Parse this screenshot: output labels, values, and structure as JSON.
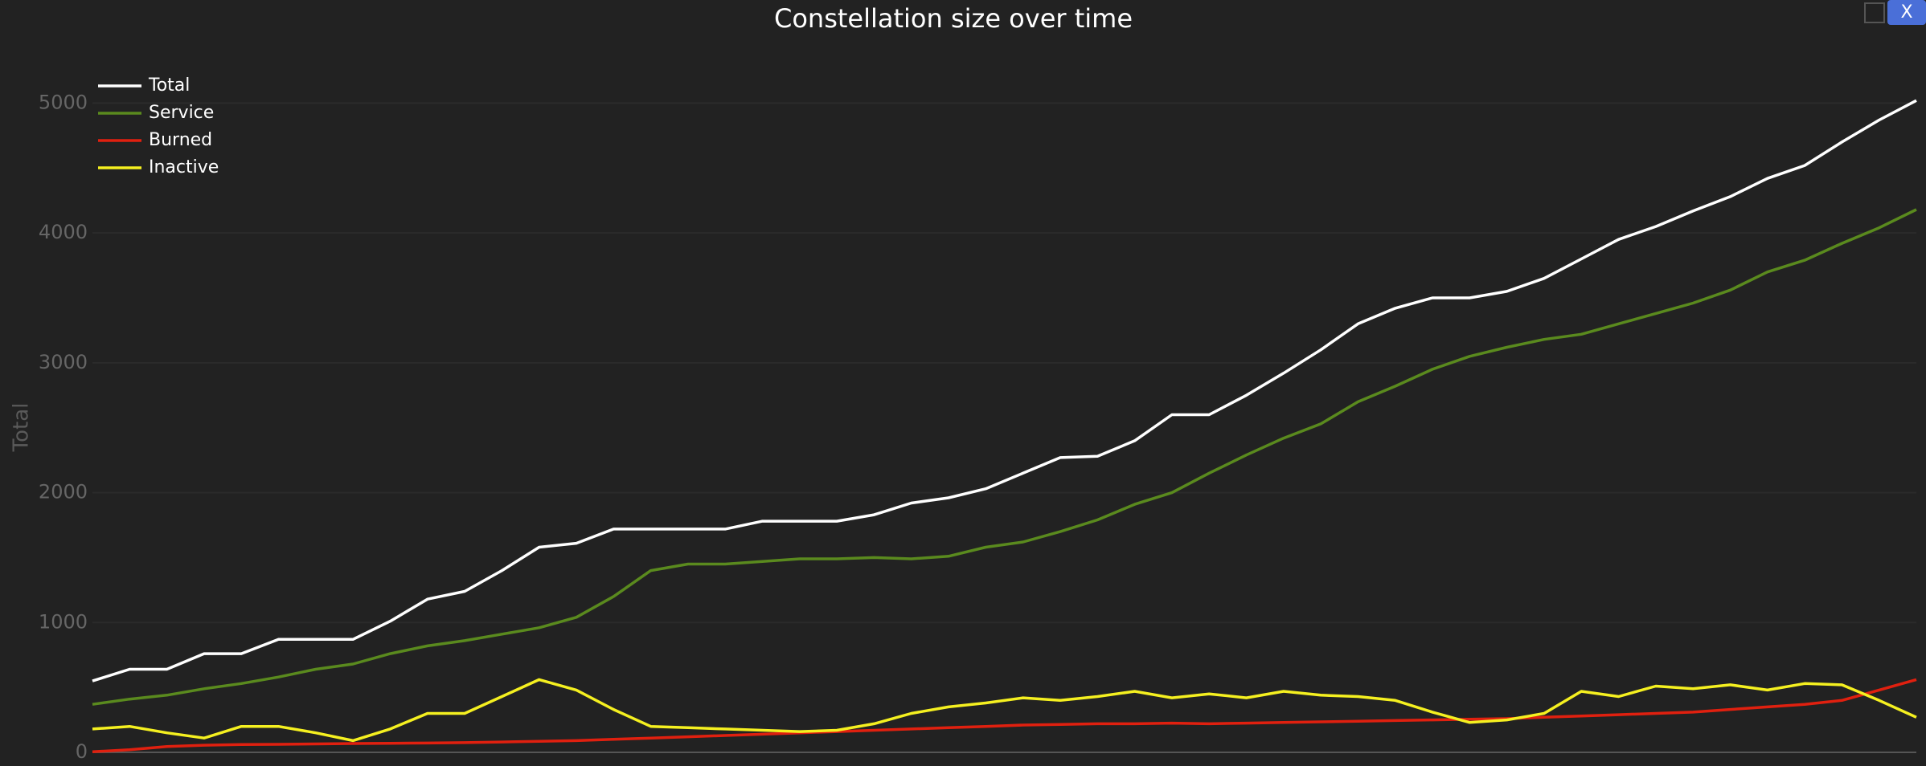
{
  "chart_data": {
    "type": "line",
    "title": "Constellation size over time",
    "y_label": "Total",
    "close_button": "X",
    "legend": "top-left",
    "grid": true,
    "ylim": [
      0,
      5250
    ],
    "yticks": [
      0,
      1000,
      2000,
      3000,
      4000,
      5000
    ],
    "categories": [
      null,
      null,
      null,
      null,
      null,
      null,
      null,
      null,
      null,
      null,
      null,
      null,
      null,
      null,
      null,
      null,
      null,
      null,
      null,
      null,
      null,
      null,
      null,
      null,
      null,
      null,
      null,
      null,
      null,
      null,
      null,
      null,
      null,
      null,
      null,
      null,
      null,
      null,
      null,
      null,
      null,
      null,
      null,
      null,
      null,
      null,
      null,
      null,
      null,
      null
    ],
    "series": [
      {
        "name": "Total",
        "color": "#ffffff",
        "values": [
          550,
          640,
          640,
          760,
          760,
          870,
          870,
          870,
          1010,
          1180,
          1240,
          1400,
          1580,
          1610,
          1720,
          1720,
          1720,
          1720,
          1780,
          1780,
          1780,
          1830,
          1920,
          1960,
          2030,
          2150,
          2270,
          2280,
          2400,
          2600,
          2600,
          2750,
          2920,
          3100,
          3300,
          3420,
          3500,
          3500,
          3550,
          3650,
          3800,
          3950,
          4050,
          4170,
          4280,
          4420,
          4520,
          4700,
          4870,
          5020
        ]
      },
      {
        "name": "Service",
        "color": "#5a8a1e",
        "values": [
          370,
          410,
          440,
          490,
          530,
          580,
          640,
          680,
          760,
          820,
          860,
          910,
          960,
          1040,
          1200,
          1400,
          1450,
          1450,
          1470,
          1490,
          1490,
          1500,
          1490,
          1510,
          1580,
          1620,
          1700,
          1790,
          1910,
          2000,
          2150,
          2290,
          2420,
          2530,
          2700,
          2820,
          2950,
          3050,
          3120,
          3180,
          3220,
          3300,
          3380,
          3460,
          3560,
          3700,
          3790,
          3920,
          4040,
          4180
        ]
      },
      {
        "name": "Burned",
        "color": "#e0200f",
        "values": [
          5,
          20,
          45,
          55,
          60,
          62,
          65,
          68,
          70,
          72,
          75,
          80,
          85,
          90,
          100,
          110,
          120,
          130,
          140,
          150,
          160,
          170,
          180,
          190,
          200,
          210,
          215,
          220,
          220,
          225,
          220,
          225,
          230,
          235,
          240,
          245,
          250,
          255,
          260,
          270,
          280,
          290,
          300,
          310,
          330,
          350,
          370,
          400,
          480,
          560
        ]
      },
      {
        "name": "Inactive",
        "color": "#f5f020",
        "values": [
          180,
          200,
          150,
          110,
          200,
          200,
          150,
          90,
          180,
          300,
          300,
          430,
          560,
          480,
          330,
          200,
          190,
          180,
          170,
          160,
          170,
          220,
          300,
          350,
          380,
          420,
          400,
          430,
          470,
          420,
          450,
          420,
          470,
          440,
          430,
          400,
          310,
          230,
          250,
          300,
          470,
          430,
          510,
          490,
          520,
          480,
          530,
          520,
          400,
          270
        ]
      }
    ]
  }
}
